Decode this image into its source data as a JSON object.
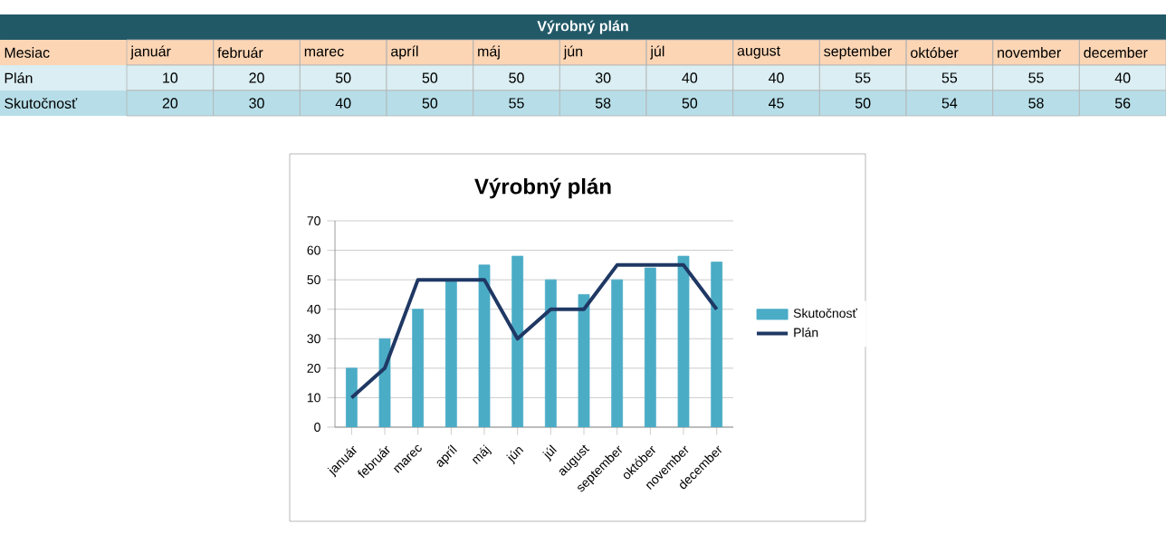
{
  "chart_data": [
    {
      "type": "heatmap",
      "title": "Výrobný plán",
      "xlabel": "Mesiac",
      "categories": [
        "január",
        "február",
        "marec",
        "apríl",
        "máj",
        "jún",
        "júl",
        "august",
        "september",
        "október",
        "november",
        "december"
      ],
      "y_categories": [
        "Plán",
        "Skutočnosť"
      ],
      "cells": [
        [
          10,
          20,
          50,
          50,
          50,
          30,
          40,
          40,
          55,
          55,
          55,
          40
        ],
        [
          20,
          30,
          40,
          50,
          55,
          58,
          50,
          45,
          50,
          54,
          58,
          56
        ]
      ],
      "data_labels": true
    },
    {
      "type": "bar",
      "title": "Výrobný plán",
      "categories": [
        "január",
        "február",
        "marec",
        "apríl",
        "máj",
        "jún",
        "júl",
        "august",
        "september",
        "október",
        "november",
        "december"
      ],
      "series": [
        {
          "name": "Skutočnosť",
          "type": "bar",
          "color": "#4bacc6",
          "values": [
            20,
            30,
            40,
            50,
            55,
            58,
            50,
            45,
            50,
            54,
            58,
            56
          ]
        },
        {
          "name": "Plán",
          "type": "line",
          "color": "#1f3864",
          "values": [
            10,
            20,
            50,
            50,
            50,
            30,
            40,
            40,
            55,
            55,
            55,
            40
          ]
        }
      ],
      "ylim": [
        0,
        70
      ],
      "yticks": [
        0,
        10,
        20,
        30,
        40,
        50,
        60,
        70
      ],
      "grid": "y",
      "legend": "right",
      "marker": "none",
      "line_style": "solid"
    }
  ]
}
